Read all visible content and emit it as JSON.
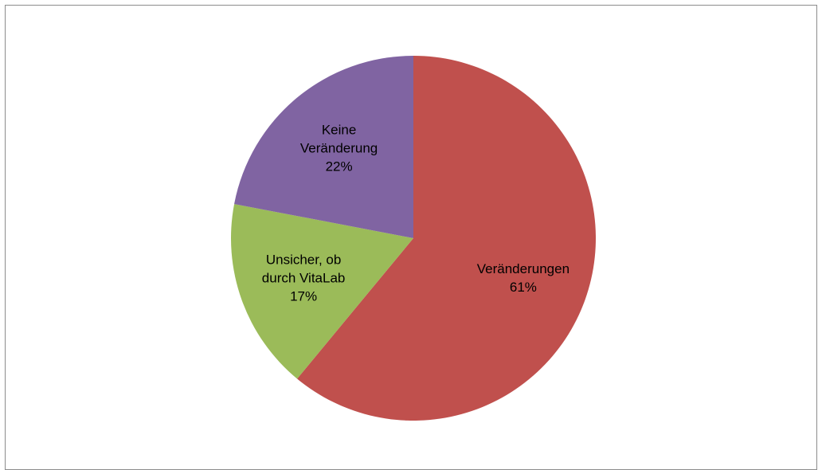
{
  "chart_data": {
    "type": "pie",
    "categories": [
      "Veränderungen",
      "Unsicher, ob durch VitaLab",
      "Keine Veränderung"
    ],
    "values": [
      61,
      17,
      22
    ],
    "value_labels": [
      "61%",
      "17%",
      "22%"
    ],
    "colors": [
      "#c0504d",
      "#9bbb59",
      "#8064a2"
    ]
  }
}
